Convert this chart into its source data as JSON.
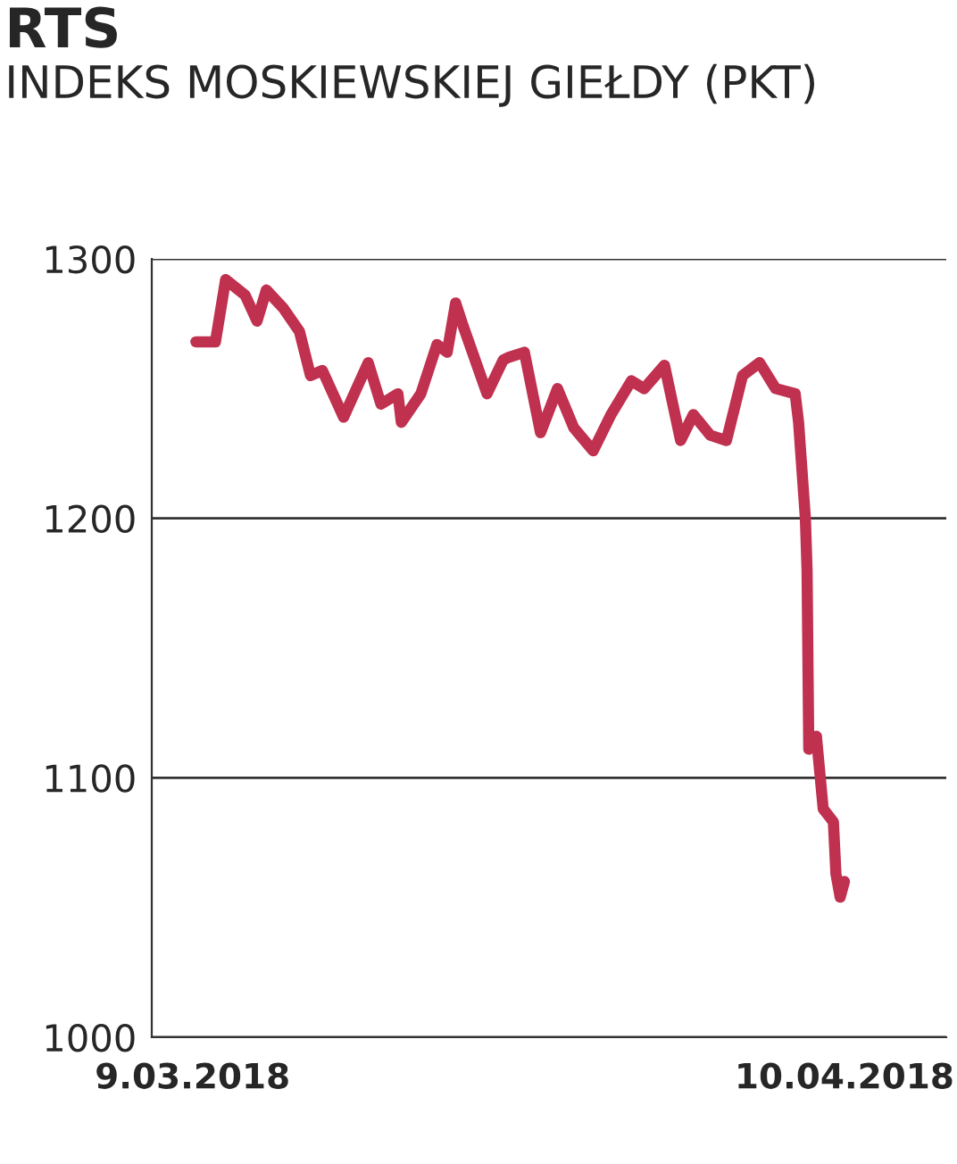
{
  "chart_data": {
    "type": "line",
    "title": "RTS",
    "subtitle": "INDEKS MOSKIEWSKIEJ GIEŁDY (PKT)",
    "x": [
      "2018-03-09T04:00",
      "2018-03-10T03:00",
      "2018-03-10T15:00",
      "2018-03-11T14:00",
      "2018-03-12T04:00",
      "2018-03-12T15:00",
      "2018-03-13T11:00",
      "2018-03-14T06:00",
      "2018-03-14T19:00",
      "2018-03-15T09:00",
      "2018-03-16T10:00",
      "2018-03-17T15:00",
      "2018-03-18T06:00",
      "2018-03-19T02:00",
      "2018-03-19T06:00",
      "2018-03-20T05:00",
      "2018-03-21T00:00",
      "2018-03-21T12:00",
      "2018-03-21T22:00",
      "2018-03-22T07:00",
      "2018-03-23T11:00",
      "2018-03-24T06:00",
      "2018-03-24T12:00",
      "2018-03-25T07:00",
      "2018-03-26T02:00",
      "2018-03-26T22:00",
      "2018-03-27T17:00",
      "2018-03-28T16:00",
      "2018-03-29T13:00",
      "2018-03-30T13:00",
      "2018-03-31T04:00",
      "2018-04-01T04:00",
      "2018-04-01T23:00",
      "2018-04-02T14:00",
      "2018-04-03T10:00",
      "2018-04-04T05:00",
      "2018-04-05T00:00",
      "2018-04-05T20:00",
      "2018-04-06T15:00",
      "2018-04-07T14:00",
      "2018-04-07T18:00",
      "2018-04-08T02:00",
      "2018-04-08T04:00",
      "2018-04-08T06:00",
      "2018-04-08T15:00",
      "2018-04-08T23:00",
      "2018-04-09T11:00",
      "2018-04-09T14:00",
      "2018-04-09T19:00",
      "2018-04-10T00:00"
    ],
    "series": [
      {
        "color": "#c0304f",
        "values": [
          1268,
          1268,
          1292,
          1286,
          1276,
          1288,
          1281,
          1272,
          1255,
          1257,
          1239,
          1260,
          1244,
          1248,
          1237,
          1248,
          1267,
          1264,
          1283,
          1274,
          1248,
          1261,
          1262,
          1264,
          1233,
          1250,
          1235,
          1226,
          1240,
          1253,
          1250,
          1259,
          1230,
          1240,
          1232,
          1230,
          1255,
          1260,
          1250,
          1248,
          1237,
          1200,
          1180,
          1111,
          1116,
          1088,
          1083,
          1063,
          1054,
          1060
        ]
      }
    ],
    "xlim": [
      "2018-03-07",
      "2018-04-15"
    ],
    "xticks": [
      {
        "value": "2018-03-09",
        "label": "9.03.2018"
      },
      {
        "value": "2018-04-10",
        "label": "10.04.2018"
      }
    ],
    "ylim": [
      1000,
      1300
    ],
    "yticks": [
      1000,
      1100,
      1200,
      1300
    ],
    "grid": "y",
    "line_style": "solid",
    "marker": "none"
  }
}
